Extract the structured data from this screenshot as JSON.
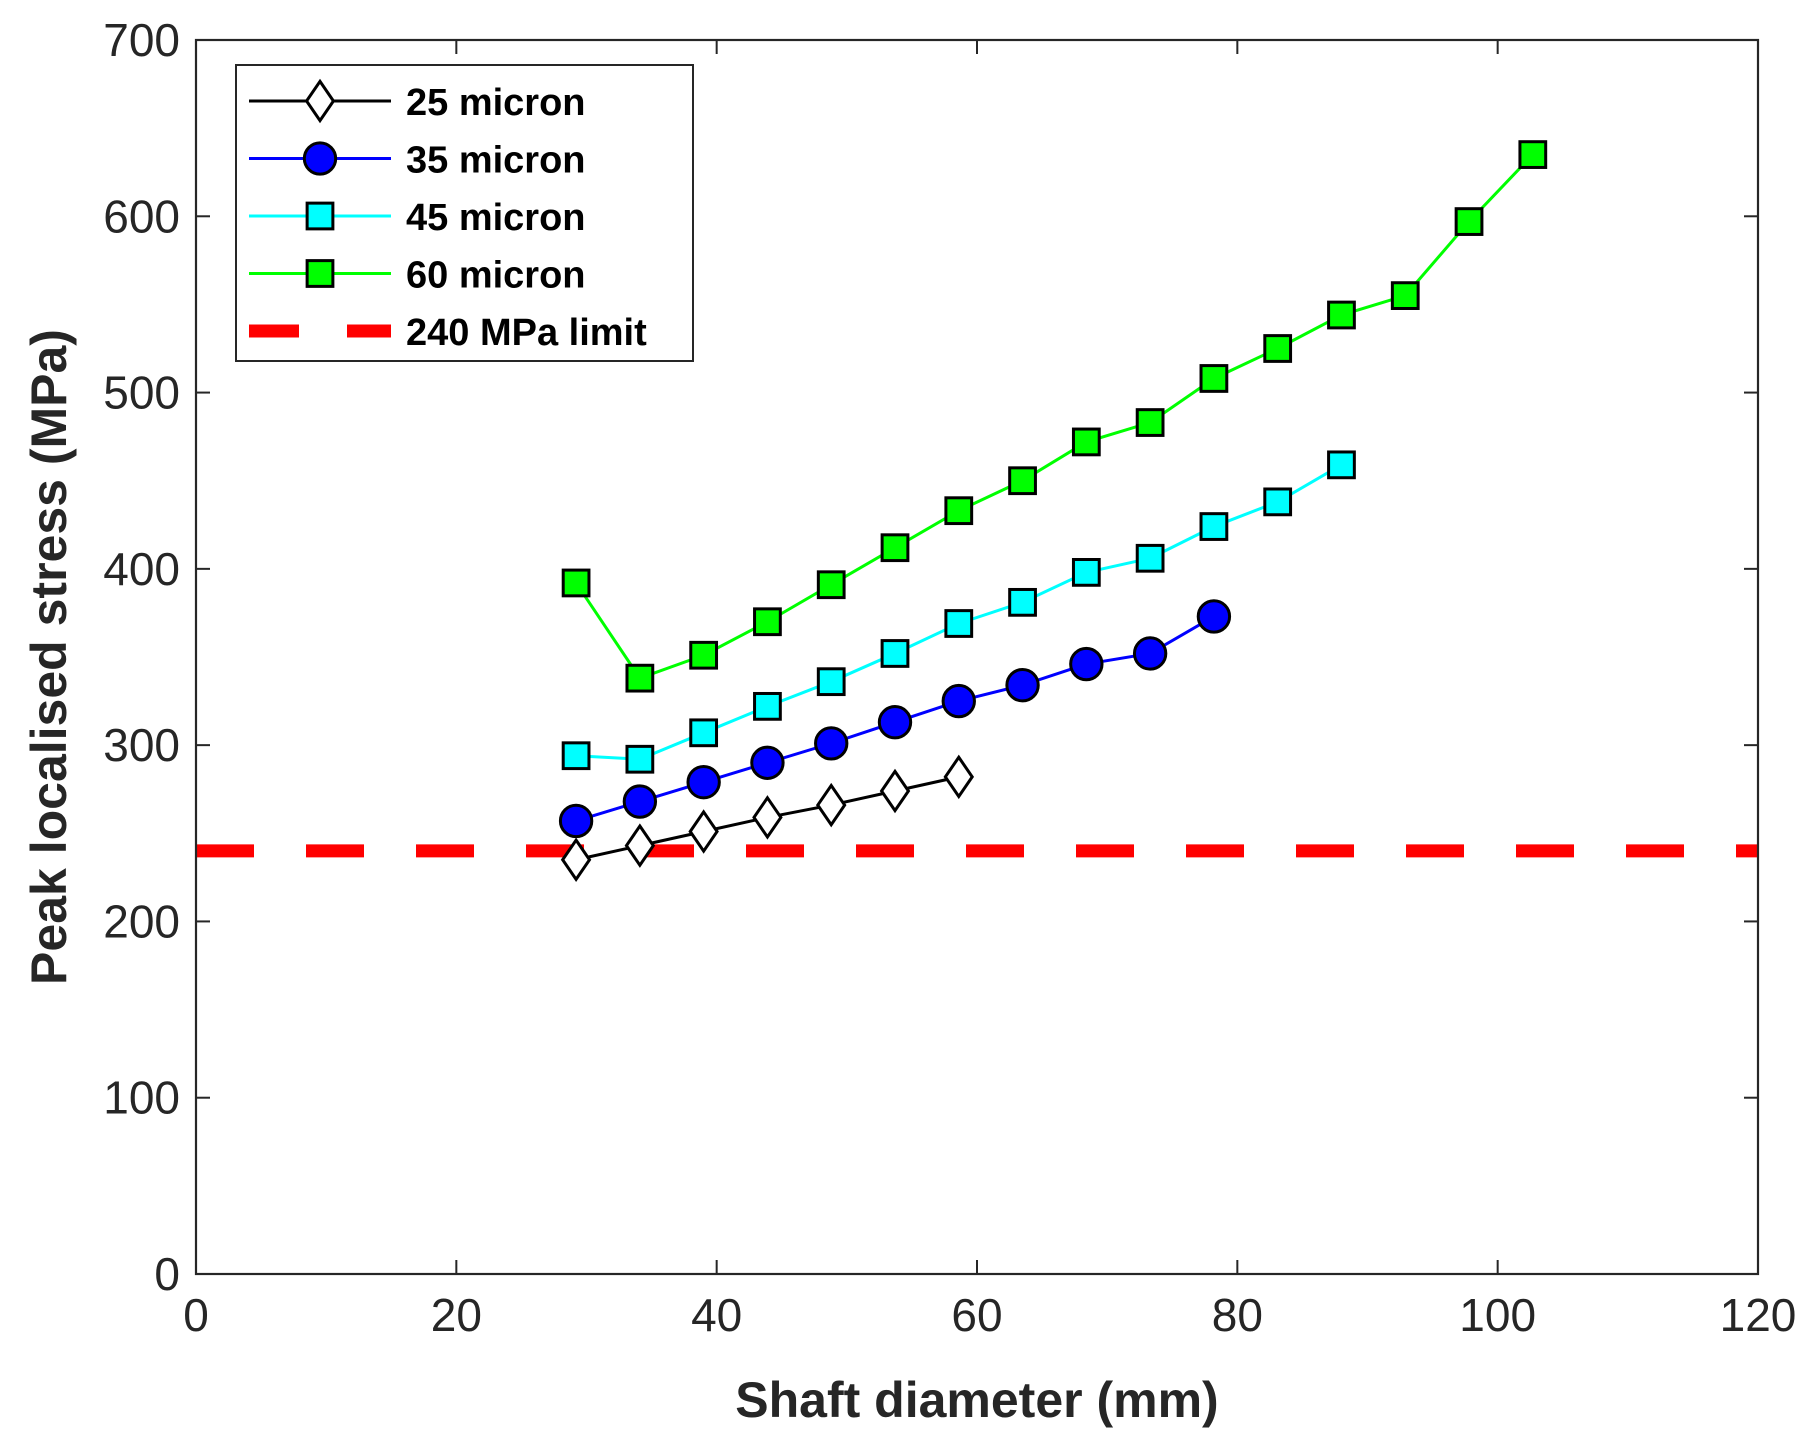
{
  "chart_data": {
    "type": "line",
    "title": "",
    "xlabel": "Shaft diameter (mm)",
    "ylabel": "Peak localised stress (MPa)",
    "xlim": [
      0,
      120
    ],
    "ylim": [
      0,
      700
    ],
    "xticks": [
      0,
      20,
      40,
      60,
      80,
      100,
      120
    ],
    "yticks": [
      0,
      100,
      200,
      300,
      400,
      500,
      600,
      700
    ],
    "grid": false,
    "legend_position": "top-left",
    "series": [
      {
        "name": "25 micron",
        "color": "#000000",
        "marker": "diamond",
        "marker_fill": "#ffffff",
        "x": [
          29.2,
          34.1,
          39.0,
          43.9,
          48.8,
          53.7,
          58.6
        ],
        "y": [
          235,
          243,
          251,
          259,
          266,
          274,
          282
        ]
      },
      {
        "name": "35 micron",
        "color": "#0000ff",
        "marker": "circle",
        "marker_fill": "#0000ff",
        "x": [
          29.2,
          34.1,
          39.0,
          43.9,
          48.8,
          53.7,
          58.6,
          63.5,
          68.4,
          73.3,
          78.2
        ],
        "y": [
          257,
          268,
          279,
          290,
          301,
          313,
          325,
          334,
          346,
          352,
          373
        ]
      },
      {
        "name": "45 micron",
        "color": "#00ffff",
        "marker": "square",
        "marker_fill": "#00ffff",
        "x": [
          29.2,
          34.1,
          39.0,
          43.9,
          48.8,
          53.7,
          58.6,
          63.5,
          68.4,
          73.3,
          78.2,
          83.1,
          88.0
        ],
        "y": [
          294,
          292,
          307,
          322,
          336,
          352,
          369,
          381,
          398,
          406,
          424,
          438,
          459
        ]
      },
      {
        "name": "60 micron",
        "color": "#00ff00",
        "marker": "square",
        "marker_fill": "#00ff00",
        "x": [
          29.2,
          34.1,
          39.0,
          43.9,
          48.8,
          53.7,
          58.6,
          63.5,
          68.4,
          73.3,
          78.2,
          83.1,
          88.0,
          92.9,
          97.8,
          102.7
        ],
        "y": [
          392,
          338,
          351,
          370,
          391,
          412,
          433,
          450,
          472,
          483,
          508,
          525,
          544,
          555,
          597,
          635
        ]
      }
    ],
    "reference_lines": [
      {
        "name": "240 MPa limit",
        "value": 240,
        "orientation": "horizontal",
        "color": "#ff0000",
        "style": "dashed"
      }
    ]
  }
}
